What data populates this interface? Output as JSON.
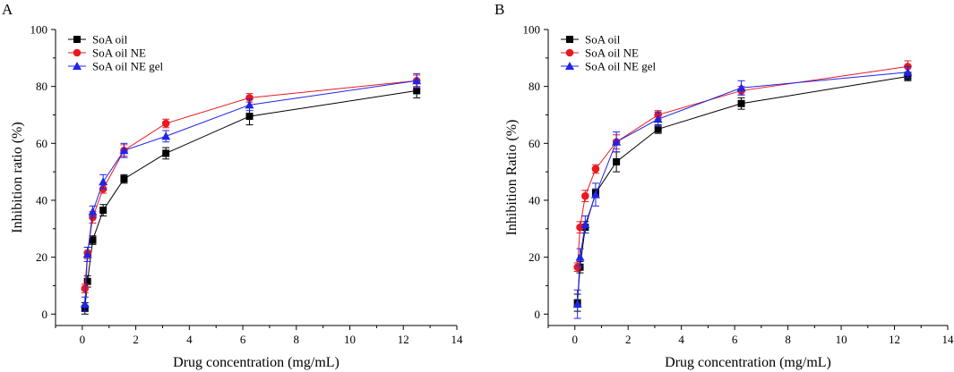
{
  "chart_data": [
    {
      "type": "line",
      "panel_label": "A",
      "xlabel": "Drug concentration (mg/mL)",
      "ylabel": "Inhibition ratio (%)",
      "xlim": [
        -1,
        14
      ],
      "ylim": [
        -4,
        100
      ],
      "xticks": [
        0,
        2,
        4,
        6,
        8,
        10,
        12,
        14
      ],
      "yticks": [
        0,
        20,
        40,
        60,
        80,
        100
      ],
      "legend_position": "top-left",
      "series": [
        {
          "name": "SoA oil",
          "color": "#000000",
          "marker": "square",
          "x": [
            0.098,
            0.195,
            0.39,
            0.78,
            1.56,
            3.125,
            6.25,
            12.5
          ],
          "y": [
            2,
            11.5,
            26,
            36.5,
            47.5,
            56.5,
            69.5,
            78.5
          ],
          "err": [
            2,
            2,
            1.5,
            2,
            1.5,
            2,
            3,
            2.5
          ]
        },
        {
          "name": "SoA oil NE",
          "color": "#e8191f",
          "marker": "circle",
          "x": [
            0.098,
            0.195,
            0.39,
            0.78,
            1.56,
            3.125,
            6.25,
            12.5
          ],
          "y": [
            9,
            21.5,
            34,
            44,
            57.5,
            67,
            76,
            82
          ],
          "err": [
            1.5,
            2,
            2,
            1.5,
            2,
            1.5,
            1.5,
            2
          ]
        },
        {
          "name": "SoA oil NE gel",
          "color": "#1f25e6",
          "marker": "triangle",
          "x": [
            0.098,
            0.195,
            0.39,
            0.78,
            1.56,
            3.125,
            6.25,
            12.5
          ],
          "y": [
            3.5,
            21,
            36,
            46.5,
            57.5,
            62.5,
            73.5,
            82
          ],
          "err": [
            2.5,
            2.5,
            2,
            2.5,
            2.5,
            2,
            2,
            2.5
          ]
        }
      ]
    },
    {
      "type": "line",
      "panel_label": "B",
      "xlabel": "Drug concentration (mg/mL)",
      "ylabel": "Inhibition Ratio (%)",
      "xlim": [
        -1,
        14
      ],
      "ylim": [
        -4,
        100
      ],
      "xticks": [
        0,
        2,
        4,
        6,
        8,
        10,
        12,
        14
      ],
      "yticks": [
        0,
        20,
        40,
        60,
        80,
        100
      ],
      "legend_position": "top-left",
      "series": [
        {
          "name": "SoA oil",
          "color": "#000000",
          "marker": "square",
          "x": [
            0.098,
            0.195,
            0.39,
            0.78,
            1.56,
            3.125,
            6.25,
            12.5
          ],
          "y": [
            4,
            16.5,
            30.5,
            42.5,
            53.5,
            65,
            74,
            83.5
          ],
          "err": [
            3,
            2,
            2,
            1.5,
            3.5,
            1.5,
            2,
            1.5
          ]
        },
        {
          "name": "SoA oil NE",
          "color": "#e8191f",
          "marker": "circle",
          "x": [
            0.098,
            0.195,
            0.39,
            0.78,
            1.56,
            3.125,
            6.25,
            12.5
          ],
          "y": [
            16.5,
            30.5,
            41.5,
            51,
            60.5,
            70,
            78.5,
            87
          ],
          "err": [
            1.5,
            2,
            2,
            1.5,
            2.5,
            1.5,
            1.5,
            2
          ]
        },
        {
          "name": "SoA oil NE gel",
          "color": "#1f25e6",
          "marker": "triangle",
          "x": [
            0.098,
            0.195,
            0.39,
            0.78,
            1.56,
            3.125,
            6.25,
            12.5
          ],
          "y": [
            3.5,
            20,
            31.5,
            42,
            60.5,
            68.5,
            79.5,
            85
          ],
          "err": [
            5,
            3,
            3,
            4,
            3.5,
            2.5,
            2.5,
            2
          ]
        }
      ]
    }
  ]
}
